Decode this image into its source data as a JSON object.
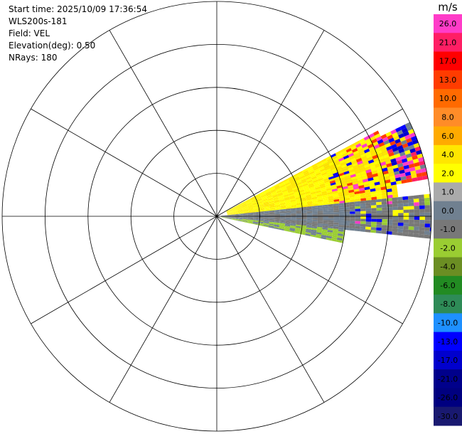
{
  "info": {
    "start_time": "Start time: 2025/10/09 17:36:54",
    "instrument": "WLS200s-181",
    "field": "Field: VEL",
    "elevation": "Elevation(deg): 0.50",
    "nrays": "NRays: 180"
  },
  "chart_data": {
    "type": "polar-ppi",
    "title": "",
    "grid": true,
    "range_rings": 5,
    "radial_spokes_deg": 30,
    "sector": {
      "azimuth_start_deg": 60,
      "azimuth_end_deg": 102
    },
    "colorbar": {
      "unit": "m/s",
      "tick_labels": [
        "26.0",
        "21.0",
        "17.0",
        "13.0",
        "10.0",
        "8.0",
        "6.0",
        "4.0",
        "2.0",
        "1.0",
        "0.0",
        "-1.0",
        "-2.0",
        "-4.0",
        "-6.0",
        "-8.0",
        "-10.0",
        "-13.0",
        "-17.0",
        "-21.0",
        "-26.0",
        "-30.0"
      ],
      "colors": [
        "#ff3cc8",
        "#ff1e64",
        "#ff0000",
        "#ff3c00",
        "#ff6a00",
        "#ff8c28",
        "#ffaa00",
        "#ffe600",
        "#ffff00",
        "#aaaaaa",
        "#708090",
        "#787878",
        "#9acd32",
        "#6b8e23",
        "#228b22",
        "#2e8b57",
        "#1e90ff",
        "#0000ff",
        "#0000cd",
        "#00008b",
        "#000080",
        "#191970"
      ]
    },
    "annotations": [
      {
        "azimuth_from": 64,
        "azimuth_to": 80,
        "band": "outer-mixed",
        "range_from": 0.55,
        "range_to": 1.0
      },
      {
        "azimuth_from": 62,
        "azimuth_to": 84,
        "band": "positive-yellow",
        "range_from": 0.05,
        "range_to": 0.85
      },
      {
        "azimuth_from": 84,
        "azimuth_to": 96,
        "band": "near-zero-gray",
        "range_from": 0.02,
        "range_to": 1.0
      },
      {
        "azimuth_from": 96,
        "azimuth_to": 102,
        "band": "negative-green",
        "range_from": 0.02,
        "range_to": 0.6
      }
    ]
  }
}
